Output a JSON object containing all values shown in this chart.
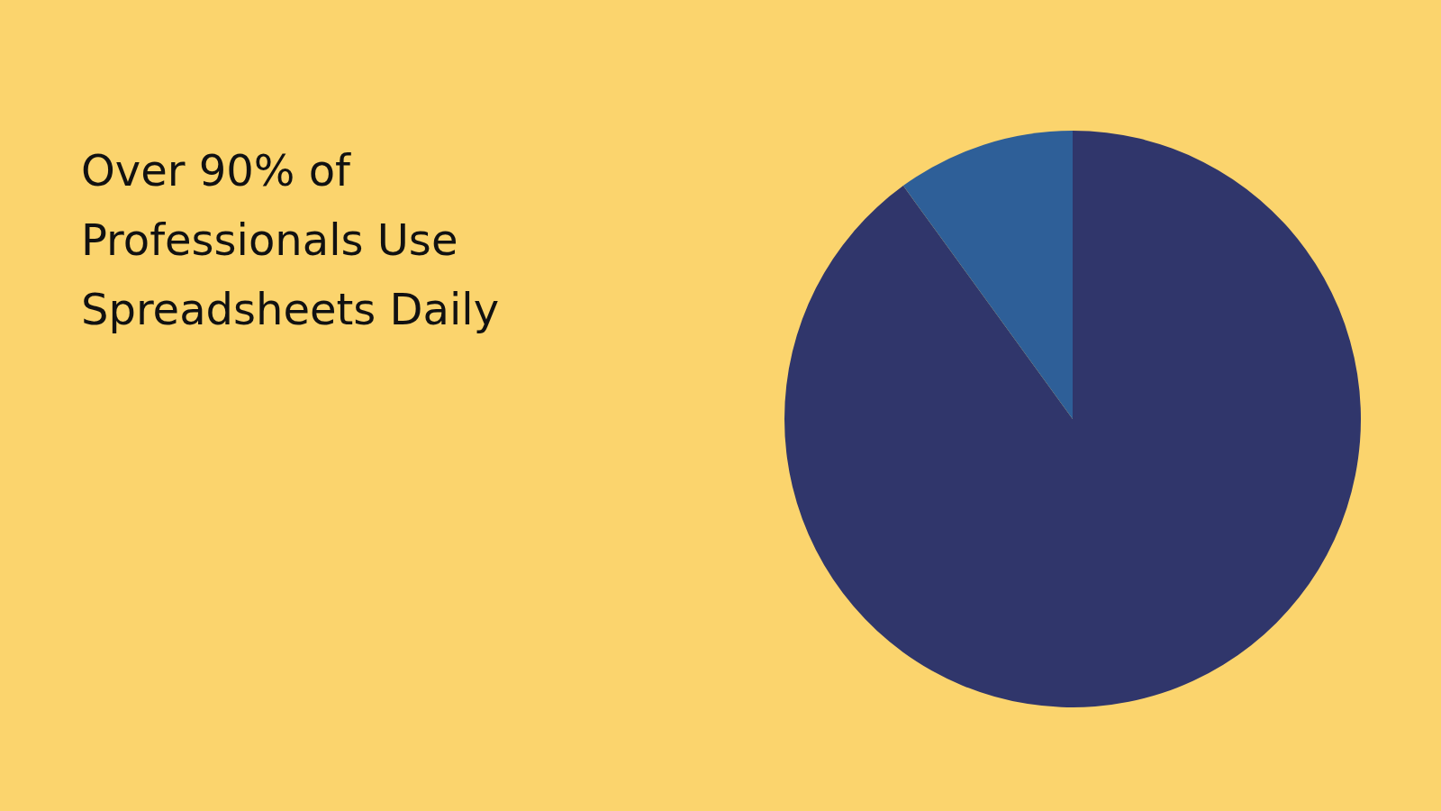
{
  "chart_data": {
    "type": "pie",
    "title": "Over 90% of Professionals Use Spreadsheets Daily",
    "categories": [
      null,
      null
    ],
    "values": [
      90,
      10
    ],
    "colors": [
      "#30366b",
      "#2e5f98"
    ]
  }
}
